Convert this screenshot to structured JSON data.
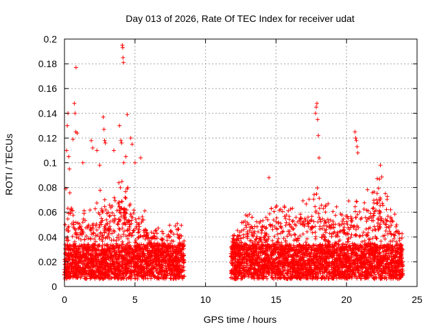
{
  "chart_data": {
    "type": "scatter",
    "title": "Day 013 of 2026, Rate Of TEC Index for receiver udat",
    "xlabel": "GPS time / hours",
    "ylabel": "ROTI / TECUs",
    "xlim": [
      0,
      25
    ],
    "ylim": [
      0,
      0.2
    ],
    "x_ticks": [
      0,
      5,
      10,
      15,
      20,
      25
    ],
    "x_tick_labels": [
      "0",
      "5",
      "10",
      "15",
      "20",
      "25"
    ],
    "y_ticks": [
      0,
      0.02,
      0.04,
      0.06,
      0.08,
      0.1,
      0.12,
      0.14,
      0.16,
      0.18,
      0.2
    ],
    "y_tick_labels": [
      "0",
      "0.02",
      "0.04",
      "0.06",
      "0.08",
      "0.1",
      "0.12",
      "0.14",
      "0.16",
      "0.18",
      "0.2"
    ],
    "grid": true,
    "marker": "+",
    "color": "#ff0000",
    "observation_windows": [
      [
        0.0,
        8.5
      ],
      [
        11.8,
        24.0
      ]
    ],
    "envelope": [
      [
        0.0,
        0.05
      ],
      [
        0.5,
        0.08
      ],
      [
        0.8,
        0.06
      ],
      [
        1.5,
        0.06
      ],
      [
        2.0,
        0.06
      ],
      [
        2.6,
        0.08
      ],
      [
        3.0,
        0.06
      ],
      [
        3.5,
        0.07
      ],
      [
        4.0,
        0.09
      ],
      [
        4.5,
        0.08
      ],
      [
        5.0,
        0.06
      ],
      [
        5.5,
        0.07
      ],
      [
        6.0,
        0.04
      ],
      [
        6.5,
        0.05
      ],
      [
        7.0,
        0.045
      ],
      [
        7.5,
        0.05
      ],
      [
        8.0,
        0.06
      ],
      [
        8.5,
        0.04
      ],
      [
        11.8,
        0.04
      ],
      [
        12.5,
        0.05
      ],
      [
        13.0,
        0.06
      ],
      [
        13.5,
        0.05
      ],
      [
        14.0,
        0.055
      ],
      [
        14.5,
        0.06
      ],
      [
        15.0,
        0.065
      ],
      [
        15.5,
        0.06
      ],
      [
        16.0,
        0.07
      ],
      [
        16.5,
        0.06
      ],
      [
        17.0,
        0.07
      ],
      [
        17.5,
        0.07
      ],
      [
        18.0,
        0.08
      ],
      [
        18.5,
        0.065
      ],
      [
        19.0,
        0.065
      ],
      [
        19.5,
        0.06
      ],
      [
        20.0,
        0.07
      ],
      [
        20.5,
        0.065
      ],
      [
        21.0,
        0.07
      ],
      [
        21.5,
        0.075
      ],
      [
        22.0,
        0.08
      ],
      [
        22.5,
        0.09
      ],
      [
        23.0,
        0.07
      ],
      [
        23.5,
        0.06
      ],
      [
        24.0,
        0.045
      ]
    ],
    "outliers": [
      [
        0.05,
        0.05
      ],
      [
        0.1,
        0.079
      ],
      [
        0.15,
        0.11
      ],
      [
        0.2,
        0.13
      ],
      [
        0.25,
        0.14
      ],
      [
        0.3,
        0.105
      ],
      [
        0.35,
        0.095
      ],
      [
        0.6,
        0.119
      ],
      [
        0.7,
        0.148
      ],
      [
        0.75,
        0.14
      ],
      [
        0.8,
        0.125
      ],
      [
        0.82,
        0.177
      ],
      [
        0.9,
        0.124
      ],
      [
        1.3,
        0.1
      ],
      [
        1.9,
        0.118
      ],
      [
        2.0,
        0.112
      ],
      [
        2.3,
        0.11
      ],
      [
        2.5,
        0.098
      ],
      [
        2.75,
        0.137
      ],
      [
        2.8,
        0.127
      ],
      [
        2.85,
        0.118
      ],
      [
        2.9,
        0.116
      ],
      [
        3.5,
        0.11
      ],
      [
        3.9,
        0.13
      ],
      [
        4.0,
        0.118
      ],
      [
        4.05,
        0.116
      ],
      [
        4.1,
        0.195
      ],
      [
        4.13,
        0.193
      ],
      [
        4.15,
        0.185
      ],
      [
        4.18,
        0.181
      ],
      [
        4.2,
        0.1
      ],
      [
        4.35,
        0.105
      ],
      [
        4.45,
        0.139
      ],
      [
        4.7,
        0.12
      ],
      [
        4.8,
        0.115
      ],
      [
        5.0,
        0.1
      ],
      [
        5.4,
        0.104
      ],
      [
        14.5,
        0.088
      ],
      [
        17.8,
        0.14
      ],
      [
        17.85,
        0.145
      ],
      [
        17.9,
        0.148
      ],
      [
        17.95,
        0.135
      ],
      [
        18.0,
        0.122
      ],
      [
        18.05,
        0.104
      ],
      [
        20.6,
        0.125
      ],
      [
        20.65,
        0.12
      ],
      [
        20.7,
        0.118
      ],
      [
        20.75,
        0.113
      ],
      [
        20.8,
        0.108
      ],
      [
        22.4,
        0.098
      ]
    ]
  }
}
